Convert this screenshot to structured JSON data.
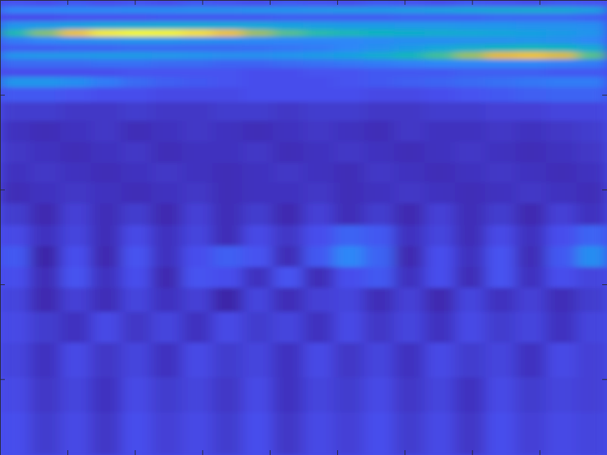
{
  "chart_data": {
    "type": "heatmap",
    "xlim": [
      0,
      9
    ],
    "ylim": [
      0,
      4.8
    ],
    "xticks": [
      1,
      2,
      3,
      4,
      5,
      6,
      7,
      8
    ],
    "yticks": [
      0.8,
      1.8,
      2.8,
      3.8
    ],
    "tick_labels": false,
    "x": [
      0.225,
      0.675,
      1.125,
      1.575,
      2.025,
      2.475,
      2.925,
      3.375,
      3.825,
      4.275,
      4.725,
      5.175,
      5.625,
      6.075,
      6.525,
      6.975,
      7.425,
      7.875,
      8.325,
      8.775
    ],
    "y": [
      4.76,
      4.69,
      4.62,
      4.52,
      4.45,
      4.37,
      4.29,
      4.21,
      4.13,
      4.03,
      3.94,
      3.81,
      3.63,
      3.41,
      3.19,
      2.97,
      2.77,
      2.53,
      2.31,
      2.09,
      1.87,
      1.65,
      1.36,
      1.0,
      0.63,
      0.26
    ],
    "z": [
      [
        0.13,
        0.12,
        0.14,
        0.12,
        0.13,
        0.12,
        0.14,
        0.13,
        0.12,
        0.14,
        0.13,
        0.12,
        0.14,
        0.13,
        0.12,
        0.14,
        0.13,
        0.12,
        0.14,
        0.13
      ],
      [
        0.22,
        0.22,
        0.23,
        0.23,
        0.24,
        0.24,
        0.25,
        0.25,
        0.26,
        0.26,
        0.27,
        0.28,
        0.28,
        0.29,
        0.3,
        0.32,
        0.34,
        0.35,
        0.34,
        0.3
      ],
      [
        0.12,
        0.12,
        0.13,
        0.13,
        0.13,
        0.14,
        0.14,
        0.14,
        0.14,
        0.15,
        0.15,
        0.15,
        0.15,
        0.16,
        0.16,
        0.16,
        0.17,
        0.17,
        0.17,
        0.16
      ],
      [
        0.26,
        0.28,
        0.3,
        0.32,
        0.33,
        0.34,
        0.34,
        0.33,
        0.32,
        0.3,
        0.29,
        0.28,
        0.28,
        0.27,
        0.27,
        0.26,
        0.26,
        0.25,
        0.25,
        0.24
      ],
      [
        0.45,
        0.62,
        0.82,
        0.95,
        0.98,
        0.97,
        0.92,
        0.82,
        0.66,
        0.55,
        0.48,
        0.44,
        0.41,
        0.38,
        0.36,
        0.34,
        0.32,
        0.3,
        0.28,
        0.26
      ],
      [
        0.2,
        0.22,
        0.24,
        0.25,
        0.26,
        0.26,
        0.25,
        0.24,
        0.23,
        0.22,
        0.22,
        0.22,
        0.23,
        0.24,
        0.24,
        0.25,
        0.25,
        0.26,
        0.25,
        0.22
      ],
      [
        0.15,
        0.15,
        0.16,
        0.16,
        0.17,
        0.17,
        0.17,
        0.17,
        0.18,
        0.19,
        0.2,
        0.22,
        0.25,
        0.28,
        0.32,
        0.36,
        0.4,
        0.42,
        0.4,
        0.34
      ],
      [
        0.26,
        0.27,
        0.27,
        0.28,
        0.28,
        0.27,
        0.26,
        0.25,
        0.25,
        0.26,
        0.28,
        0.3,
        0.35,
        0.42,
        0.52,
        0.65,
        0.78,
        0.82,
        0.76,
        0.55
      ],
      [
        0.17,
        0.17,
        0.17,
        0.18,
        0.18,
        0.17,
        0.17,
        0.16,
        0.16,
        0.17,
        0.18,
        0.19,
        0.2,
        0.21,
        0.22,
        0.22,
        0.22,
        0.22,
        0.21,
        0.2
      ],
      [
        0.12,
        0.12,
        0.12,
        0.12,
        0.13,
        0.13,
        0.13,
        0.13,
        0.12,
        0.12,
        0.13,
        0.13,
        0.14,
        0.14,
        0.14,
        0.15,
        0.15,
        0.15,
        0.14,
        0.14
      ],
      [
        0.26,
        0.26,
        0.24,
        0.2,
        0.17,
        0.15,
        0.14,
        0.13,
        0.12,
        0.12,
        0.12,
        0.13,
        0.14,
        0.15,
        0.16,
        0.17,
        0.18,
        0.19,
        0.2,
        0.2
      ],
      [
        0.14,
        0.14,
        0.13,
        0.12,
        0.12,
        0.11,
        0.11,
        0.11,
        0.12,
        0.12,
        0.12,
        0.12,
        0.11,
        0.11,
        0.12,
        0.13,
        0.14,
        0.15,
        0.16,
        0.16
      ],
      [
        0.08,
        0.08,
        0.07,
        0.07,
        0.08,
        0.07,
        0.07,
        0.08,
        0.08,
        0.07,
        0.08,
        0.08,
        0.07,
        0.07,
        0.08,
        0.08,
        0.09,
        0.09,
        0.1,
        0.1
      ],
      [
        0.06,
        0.05,
        0.06,
        0.07,
        0.05,
        0.06,
        0.07,
        0.06,
        0.05,
        0.06,
        0.07,
        0.06,
        0.05,
        0.07,
        0.06,
        0.06,
        0.07,
        0.06,
        0.07,
        0.08
      ],
      [
        0.07,
        0.06,
        0.05,
        0.06,
        0.07,
        0.05,
        0.06,
        0.06,
        0.07,
        0.05,
        0.06,
        0.07,
        0.06,
        0.05,
        0.06,
        0.07,
        0.06,
        0.05,
        0.06,
        0.07
      ],
      [
        0.06,
        0.07,
        0.06,
        0.05,
        0.06,
        0.07,
        0.06,
        0.05,
        0.06,
        0.07,
        0.06,
        0.05,
        0.07,
        0.06,
        0.05,
        0.06,
        0.07,
        0.06,
        0.05,
        0.06
      ],
      [
        0.05,
        0.06,
        0.07,
        0.06,
        0.05,
        0.06,
        0.07,
        0.05,
        0.06,
        0.06,
        0.07,
        0.05,
        0.06,
        0.07,
        0.06,
        0.05,
        0.06,
        0.07,
        0.06,
        0.05
      ],
      [
        0.08,
        0.04,
        0.09,
        0.05,
        0.08,
        0.04,
        0.09,
        0.05,
        0.08,
        0.04,
        0.09,
        0.05,
        0.08,
        0.04,
        0.09,
        0.05,
        0.08,
        0.04,
        0.09,
        0.06
      ],
      [
        0.11,
        0.06,
        0.1,
        0.05,
        0.11,
        0.06,
        0.1,
        0.05,
        0.11,
        0.07,
        0.12,
        0.16,
        0.14,
        0.06,
        0.1,
        0.05,
        0.11,
        0.06,
        0.12,
        0.16
      ],
      [
        0.14,
        0.03,
        0.12,
        0.04,
        0.13,
        0.06,
        0.12,
        0.15,
        0.13,
        0.05,
        0.14,
        0.22,
        0.16,
        0.04,
        0.12,
        0.06,
        0.13,
        0.05,
        0.14,
        0.24
      ],
      [
        0.12,
        0.05,
        0.13,
        0.06,
        0.12,
        0.04,
        0.13,
        0.12,
        0.06,
        0.13,
        0.05,
        0.12,
        0.14,
        0.06,
        0.12,
        0.05,
        0.13,
        0.06,
        0.12,
        0.1
      ],
      [
        0.1,
        0.04,
        0.09,
        0.05,
        0.1,
        0.06,
        0.09,
        0.03,
        0.1,
        0.05,
        0.09,
        0.1,
        0.05,
        0.09,
        0.04,
        0.1,
        0.06,
        0.09,
        0.05,
        0.08
      ],
      [
        0.11,
        0.08,
        0.06,
        0.11,
        0.07,
        0.1,
        0.06,
        0.11,
        0.08,
        0.1,
        0.06,
        0.11,
        0.07,
        0.1,
        0.06,
        0.11,
        0.08,
        0.1,
        0.06,
        0.1
      ],
      [
        0.1,
        0.06,
        0.11,
        0.07,
        0.1,
        0.06,
        0.11,
        0.08,
        0.1,
        0.06,
        0.11,
        0.07,
        0.1,
        0.06,
        0.11,
        0.08,
        0.1,
        0.06,
        0.11,
        0.09
      ],
      [
        0.11,
        0.07,
        0.1,
        0.06,
        0.11,
        0.08,
        0.1,
        0.07,
        0.11,
        0.06,
        0.1,
        0.08,
        0.11,
        0.07,
        0.1,
        0.06,
        0.11,
        0.08,
        0.1,
        0.09
      ],
      [
        0.12,
        0.08,
        0.11,
        0.07,
        0.12,
        0.09,
        0.11,
        0.08,
        0.12,
        0.07,
        0.11,
        0.09,
        0.12,
        0.08,
        0.11,
        0.07,
        0.12,
        0.09,
        0.11,
        0.1
      ]
    ]
  }
}
